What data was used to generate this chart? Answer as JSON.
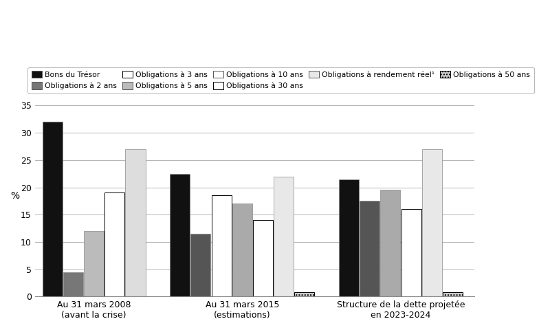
{
  "groups": [
    "Au 31 mars 2008\n(avant la crise)",
    "Au 31 mars 2015\n(estimations)",
    "Structure de la dette projetée\nen 2023-2024"
  ],
  "bars_2008": [
    {
      "val": 32.0,
      "color": "#111111",
      "hatch": null,
      "label": "Bons du Trésor"
    },
    {
      "val": 4.5,
      "color": "#777777",
      "hatch": null,
      "label": "Obligations à 2 ans"
    },
    {
      "val": 12.0,
      "color": "#bbbbbb",
      "hatch": null,
      "label": "Obligations à 5 ans"
    },
    {
      "val": 19.0,
      "color": "#111111",
      "hatch": "chevron",
      "label": "Obligations à 30 ans"
    },
    {
      "val": 27.0,
      "color": "#dddddd",
      "hatch": null,
      "label": "Obligations à rendement réel¹"
    }
  ],
  "bars_2015": [
    {
      "val": 22.5,
      "color": "#111111",
      "hatch": null,
      "label": "Bons du Trésor"
    },
    {
      "val": 11.5,
      "color": "#555555",
      "hatch": null,
      "label": "Obligations à 2 ans"
    },
    {
      "val": 18.5,
      "color": "#ffffff",
      "hatch": "hlines",
      "label": "Obligations à 3 ans"
    },
    {
      "val": 17.0,
      "color": "#aaaaaa",
      "hatch": null,
      "label": "Obligations à 5 ans"
    },
    {
      "val": 14.0,
      "color": "#111111",
      "hatch": "chevron",
      "label": "Obligations à 30 ans"
    },
    {
      "val": 22.0,
      "color": "#e8e8e8",
      "hatch": null,
      "label": "Obligations à rendement réel¹"
    },
    {
      "val": 0.8,
      "color": "#aaaaaa",
      "hatch": "dots",
      "label": "Obligations à 50 ans"
    }
  ],
  "bars_2023": [
    {
      "val": 21.5,
      "color": "#111111",
      "hatch": null,
      "label": "Bons du Trésor"
    },
    {
      "val": 17.5,
      "color": "#555555",
      "hatch": null,
      "label": "Obligations à 5 ans"
    },
    {
      "val": 19.5,
      "color": "#aaaaaa",
      "hatch": null,
      "label": "Obligations à 10 ans"
    },
    {
      "val": 16.0,
      "color": "#111111",
      "hatch": "chevron",
      "label": "Obligations à 30 ans"
    },
    {
      "val": 27.0,
      "color": "#e8e8e8",
      "hatch": null,
      "label": "Obligations à rendement réel¹"
    },
    {
      "val": 0.8,
      "color": "#aaaaaa",
      "hatch": "dots",
      "label": "Obligations à 50 ans"
    }
  ],
  "ylabel": "%",
  "ylim": [
    0,
    35
  ],
  "yticks": [
    0,
    5,
    10,
    15,
    20,
    25,
    30,
    35
  ],
  "background_color": "#ffffff",
  "grid_color": "#aaaaaa"
}
